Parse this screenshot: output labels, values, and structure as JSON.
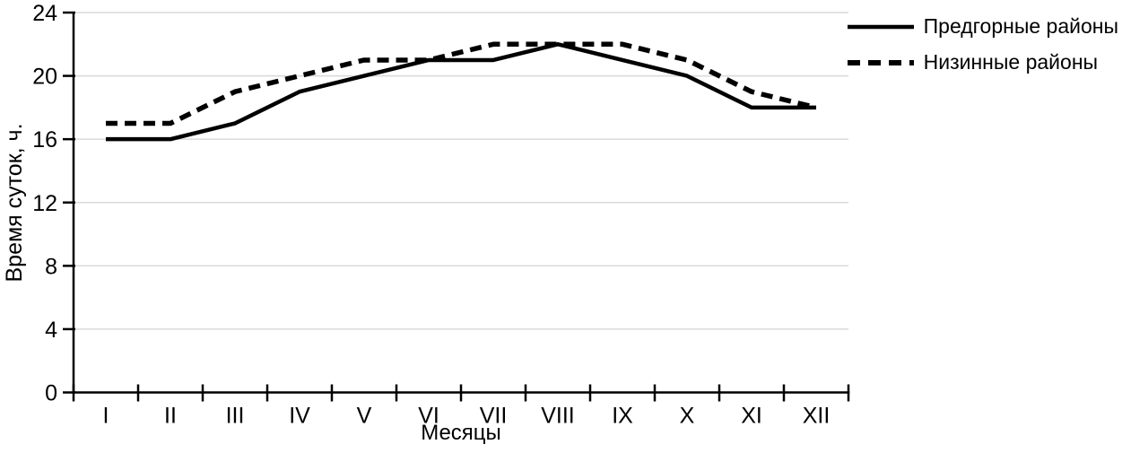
{
  "chart_data": {
    "type": "line",
    "x": [
      "I",
      "II",
      "III",
      "IV",
      "V",
      "VI",
      "VII",
      "VIII",
      "IX",
      "X",
      "XI",
      "XII"
    ],
    "series": [
      {
        "name": "Предгорные районы",
        "style": "solid",
        "values": [
          16,
          16,
          17,
          19,
          20,
          21,
          21,
          22,
          21,
          20,
          18,
          18
        ]
      },
      {
        "name": "Низинные районы",
        "style": "dashed",
        "values": [
          17,
          17,
          19,
          20,
          21,
          21,
          22,
          22,
          22,
          21,
          19,
          18
        ]
      }
    ],
    "title": "",
    "xlabel": "Месяцы",
    "ylabel": "Время суток, ч.",
    "ylim": [
      0,
      24
    ],
    "y_tick_step": 4,
    "y_tick_labels": [
      "0",
      "4",
      "8",
      "12",
      "16",
      "20",
      "24"
    ],
    "grid": "horizontal",
    "legend_position": "top-right",
    "colors": {
      "line": "#000000",
      "grid": "#d9d9d9",
      "text": "#000000"
    }
  }
}
